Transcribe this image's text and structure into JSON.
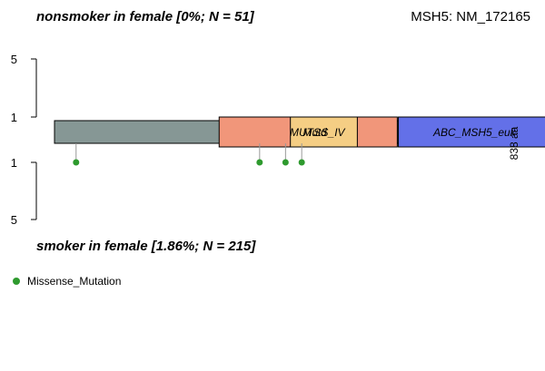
{
  "chart_data": {
    "type": "lollipop",
    "gene": "MSH5: NM_172165",
    "top_panel": {
      "title": "nonsmoker in female [0%; N = 51]",
      "ticks": [
        5,
        1
      ],
      "mutations": []
    },
    "bottom_panel": {
      "title": "smoker in female [1.86%; N = 215]",
      "ticks": [
        1,
        5
      ],
      "mutations": [
        {
          "position": 40,
          "count": 1,
          "type": "Missense_Mutation"
        },
        {
          "position": 380,
          "count": 1,
          "type": "Missense_Mutation"
        },
        {
          "position": 428,
          "count": 1,
          "type": "Missense_Mutation"
        },
        {
          "position": 458,
          "count": 1,
          "type": "Missense_Mutation"
        }
      ]
    },
    "protein_length": 838,
    "length_label": "838 aa",
    "domains": [
      {
        "name": "MUTSd",
        "start": 305,
        "end": 635,
        "color": "#F1967A"
      },
      {
        "name": "MutS_IV",
        "start": 437,
        "end": 561,
        "color": "#F5CE84"
      },
      {
        "name": "ABC_MSH5_euk",
        "start": 637,
        "end": 919,
        "color": "#6370E8"
      }
    ],
    "backbone_color": "#869795",
    "legend": [
      {
        "label": "Missense_Mutation",
        "color": "#2E9A2E"
      }
    ]
  }
}
